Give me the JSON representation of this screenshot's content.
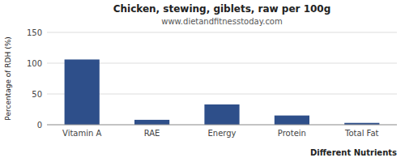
{
  "chart_data": {
    "type": "bar",
    "title": "Chicken, stewing, giblets, raw per 100g",
    "subtitle": "www.dietandfitnesstoday.com",
    "xlabel": "Different Nutrients",
    "ylabel": "Percentage of RDH (%)",
    "categories": [
      "Vitamin A",
      "RAE",
      "Energy",
      "Protein",
      "Total Fat"
    ],
    "values": [
      106,
      8,
      33,
      15,
      3
    ],
    "color": "#2e4f8a",
    "ylim": [
      0,
      150
    ],
    "yticks": [
      0,
      50,
      100,
      150
    ],
    "grid": true
  }
}
